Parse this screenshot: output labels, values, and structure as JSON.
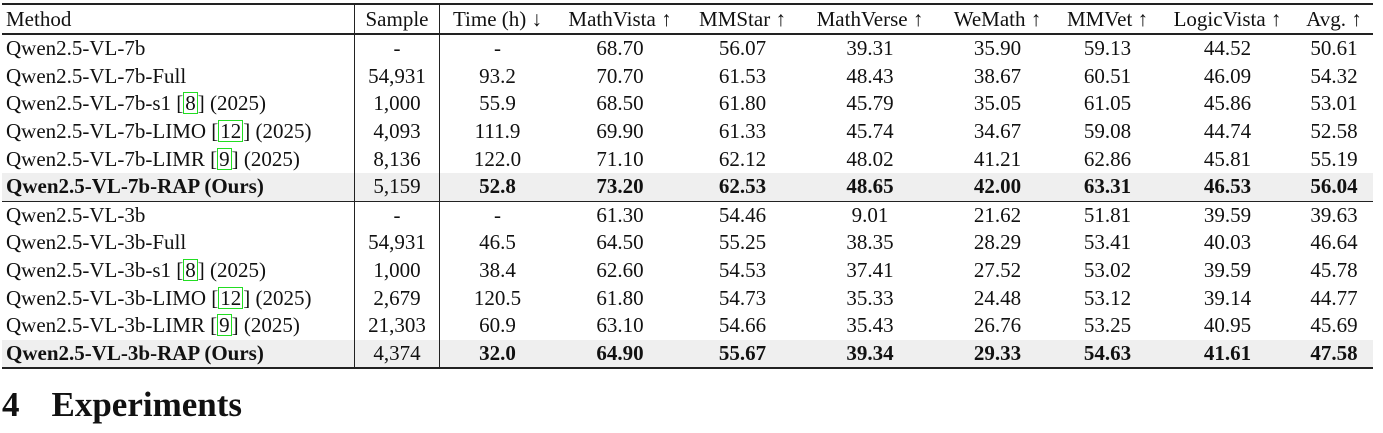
{
  "table": {
    "headers": [
      "Method",
      "Sample",
      "Time (h) ↓",
      "MathVista ↑",
      "MMStar ↑",
      "MathVerse ↑",
      "WeMath ↑",
      "MMVet ↑",
      "LogicVista ↑",
      "Avg. ↑"
    ],
    "groups": [
      {
        "rows": [
          {
            "method": "Qwen2.5-VL-7b",
            "cite": "",
            "year": "",
            "ours": false,
            "values": [
              "-",
              "-",
              "68.70",
              "56.07",
              "39.31",
              "35.90",
              "59.13",
              "44.52",
              "50.61"
            ]
          },
          {
            "method": "Qwen2.5-VL-7b-Full",
            "cite": "",
            "year": "",
            "ours": false,
            "values": [
              "54,931",
              "93.2",
              "70.70",
              "61.53",
              "48.43",
              "38.67",
              "60.51",
              "46.09",
              "54.32"
            ]
          },
          {
            "method": "Qwen2.5-VL-7b-s1",
            "cite": "8",
            "year": "(2025)",
            "ours": false,
            "values": [
              "1,000",
              "55.9",
              "68.50",
              "61.80",
              "45.79",
              "35.05",
              "61.05",
              "45.86",
              "53.01"
            ]
          },
          {
            "method": "Qwen2.5-VL-7b-LIMO",
            "cite": "12",
            "year": "(2025)",
            "ours": false,
            "values": [
              "4,093",
              "111.9",
              "69.90",
              "61.33",
              "45.74",
              "34.67",
              "59.08",
              "44.74",
              "52.58"
            ]
          },
          {
            "method": "Qwen2.5-VL-7b-LIMR",
            "cite": "9",
            "year": "(2025)",
            "ours": false,
            "values": [
              "8,136",
              "122.0",
              "71.10",
              "62.12",
              "48.02",
              "41.21",
              "62.86",
              "45.81",
              "55.19"
            ]
          },
          {
            "method": "Qwen2.5-VL-7b-RAP (Ours)",
            "cite": "",
            "year": "",
            "ours": true,
            "values": [
              "5,159",
              "52.8",
              "73.20",
              "62.53",
              "48.65",
              "42.00",
              "63.31",
              "46.53",
              "56.04"
            ]
          }
        ]
      },
      {
        "rows": [
          {
            "method": "Qwen2.5-VL-3b",
            "cite": "",
            "year": "",
            "ours": false,
            "values": [
              "-",
              "-",
              "61.30",
              "54.46",
              "9.01",
              "21.62",
              "51.81",
              "39.59",
              "39.63"
            ]
          },
          {
            "method": "Qwen2.5-VL-3b-Full",
            "cite": "",
            "year": "",
            "ours": false,
            "values": [
              "54,931",
              "46.5",
              "64.50",
              "55.25",
              "38.35",
              "28.29",
              "53.41",
              "40.03",
              "46.64"
            ]
          },
          {
            "method": "Qwen2.5-VL-3b-s1",
            "cite": "8",
            "year": "(2025)",
            "ours": false,
            "values": [
              "1,000",
              "38.4",
              "62.60",
              "54.53",
              "37.41",
              "27.52",
              "53.02",
              "39.59",
              "45.78"
            ]
          },
          {
            "method": "Qwen2.5-VL-3b-LIMO",
            "cite": "12",
            "year": "(2025)",
            "ours": false,
            "values": [
              "2,679",
              "120.5",
              "61.80",
              "54.73",
              "35.33",
              "24.48",
              "53.12",
              "39.14",
              "44.77"
            ]
          },
          {
            "method": "Qwen2.5-VL-3b-LIMR",
            "cite": "9",
            "year": "(2025)",
            "ours": false,
            "values": [
              "21,303",
              "60.9",
              "63.10",
              "54.66",
              "35.43",
              "26.76",
              "53.25",
              "40.95",
              "45.69"
            ]
          },
          {
            "method": "Qwen2.5-VL-3b-RAP (Ours)",
            "cite": "",
            "year": "",
            "ours": true,
            "values": [
              "4,374",
              "32.0",
              "64.90",
              "55.67",
              "39.34",
              "29.33",
              "54.63",
              "41.61",
              "47.58"
            ]
          }
        ]
      }
    ]
  },
  "section": {
    "number": "4",
    "title": "Experiments"
  },
  "colors": {
    "citation_box": "#22dd22",
    "highlight_row": "#efefef"
  }
}
